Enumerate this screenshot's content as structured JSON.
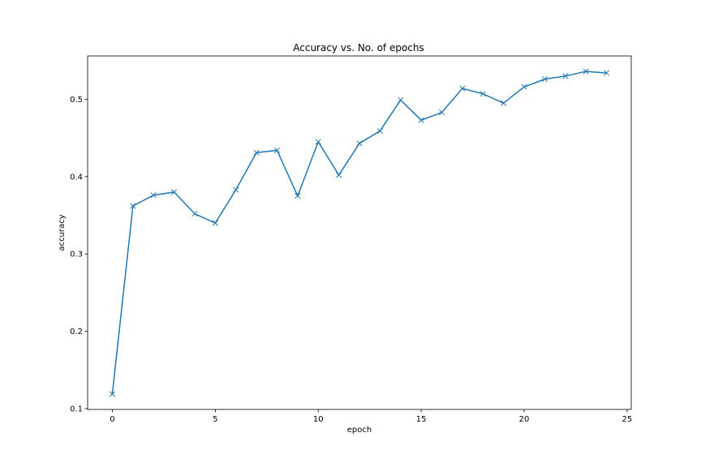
{
  "chart_data": {
    "type": "line",
    "title": "Accuracy vs. No. of epochs",
    "xlabel": "epoch",
    "ylabel": "accuracy",
    "xlim": [
      -1.2,
      25.2
    ],
    "ylim": [
      0.099,
      0.556
    ],
    "xticks": [
      0,
      5,
      10,
      15,
      20,
      25
    ],
    "yticks": [
      0.1,
      0.2,
      0.3,
      0.4,
      0.5
    ],
    "xtick_labels": [
      "0",
      "5",
      "10",
      "15",
      "20",
      "25"
    ],
    "ytick_labels": [
      "0.1",
      "0.2",
      "0.3",
      "0.4",
      "0.5"
    ],
    "grid": false,
    "marker": "x",
    "color": "#1f77b4",
    "series": [
      {
        "x": [
          0,
          1,
          2,
          3,
          4,
          5,
          6,
          7,
          8,
          9,
          10,
          11,
          12,
          13,
          14,
          15,
          16,
          17,
          18,
          19,
          20,
          21,
          22,
          23,
          24
        ],
        "values": [
          0.119,
          0.362,
          0.376,
          0.38,
          0.352,
          0.34,
          0.383,
          0.431,
          0.434,
          0.375,
          0.445,
          0.402,
          0.443,
          0.459,
          0.499,
          0.473,
          0.483,
          0.514,
          0.507,
          0.495,
          0.516,
          0.526,
          0.53,
          0.536,
          0.534
        ]
      }
    ]
  }
}
